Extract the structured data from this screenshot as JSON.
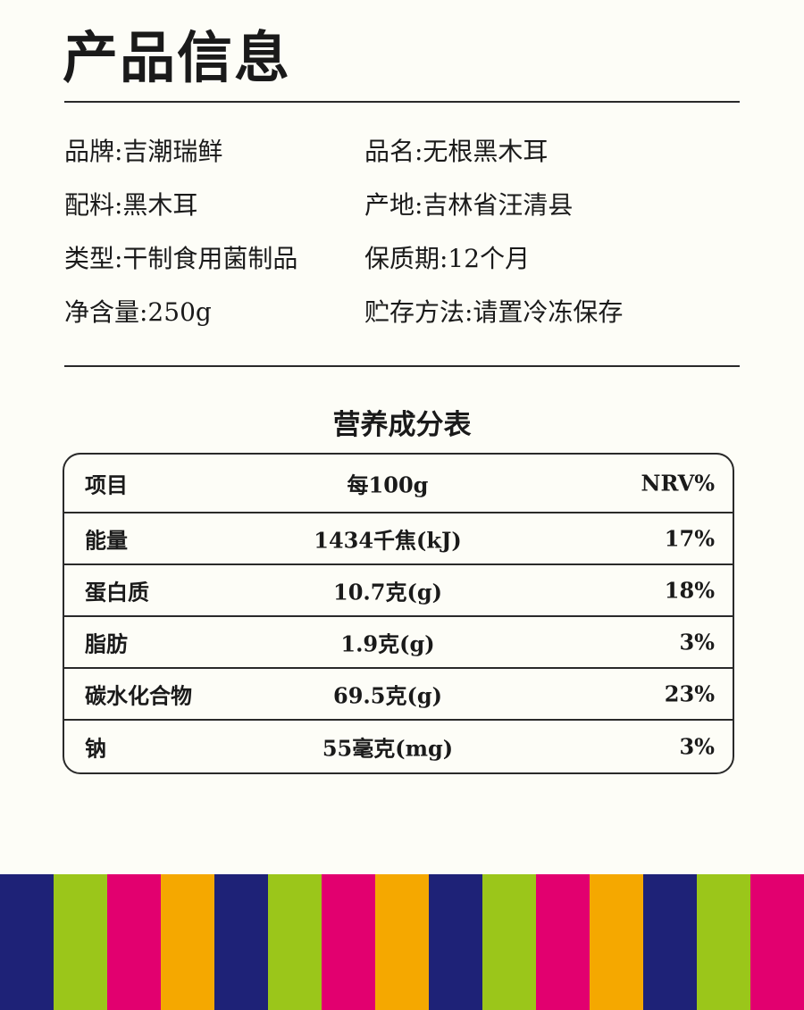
{
  "title": "产品信息",
  "info": [
    {
      "label": "品牌:吉潮瑞鲜"
    },
    {
      "label": "品名:无根黑木耳"
    },
    {
      "label": "配料:黑木耳"
    },
    {
      "label": "产地:吉林省汪清县"
    },
    {
      "label": "类型:干制食用菌制品"
    },
    {
      "label": "保质期:12个月"
    },
    {
      "label": "净含量:250g"
    },
    {
      "label": "贮存方法:请置冷冻保存"
    }
  ],
  "nutrition": {
    "title": "营养成分表",
    "headers": [
      "项目",
      "每100g",
      "NRV%"
    ],
    "rows": [
      [
        "能量",
        "1434千焦(kJ)",
        "17%"
      ],
      [
        "蛋白质",
        "10.7克(g)",
        "18%"
      ],
      [
        "脂肪",
        "1.9克(g)",
        "3%"
      ],
      [
        "碳水化合物",
        "69.5克(g)",
        "23%"
      ],
      [
        "钠",
        "55毫克(mg)",
        "3%"
      ]
    ]
  },
  "stripe_colors": [
    "#1e2277",
    "#9bc61a",
    "#e2006f",
    "#f5a800",
    "#1e2277",
    "#9bc61a",
    "#e2006f",
    "#f5a800",
    "#1e2277",
    "#9bc61a",
    "#e2006f",
    "#f5a800",
    "#1e2277",
    "#9bc61a",
    "#e2006f"
  ]
}
